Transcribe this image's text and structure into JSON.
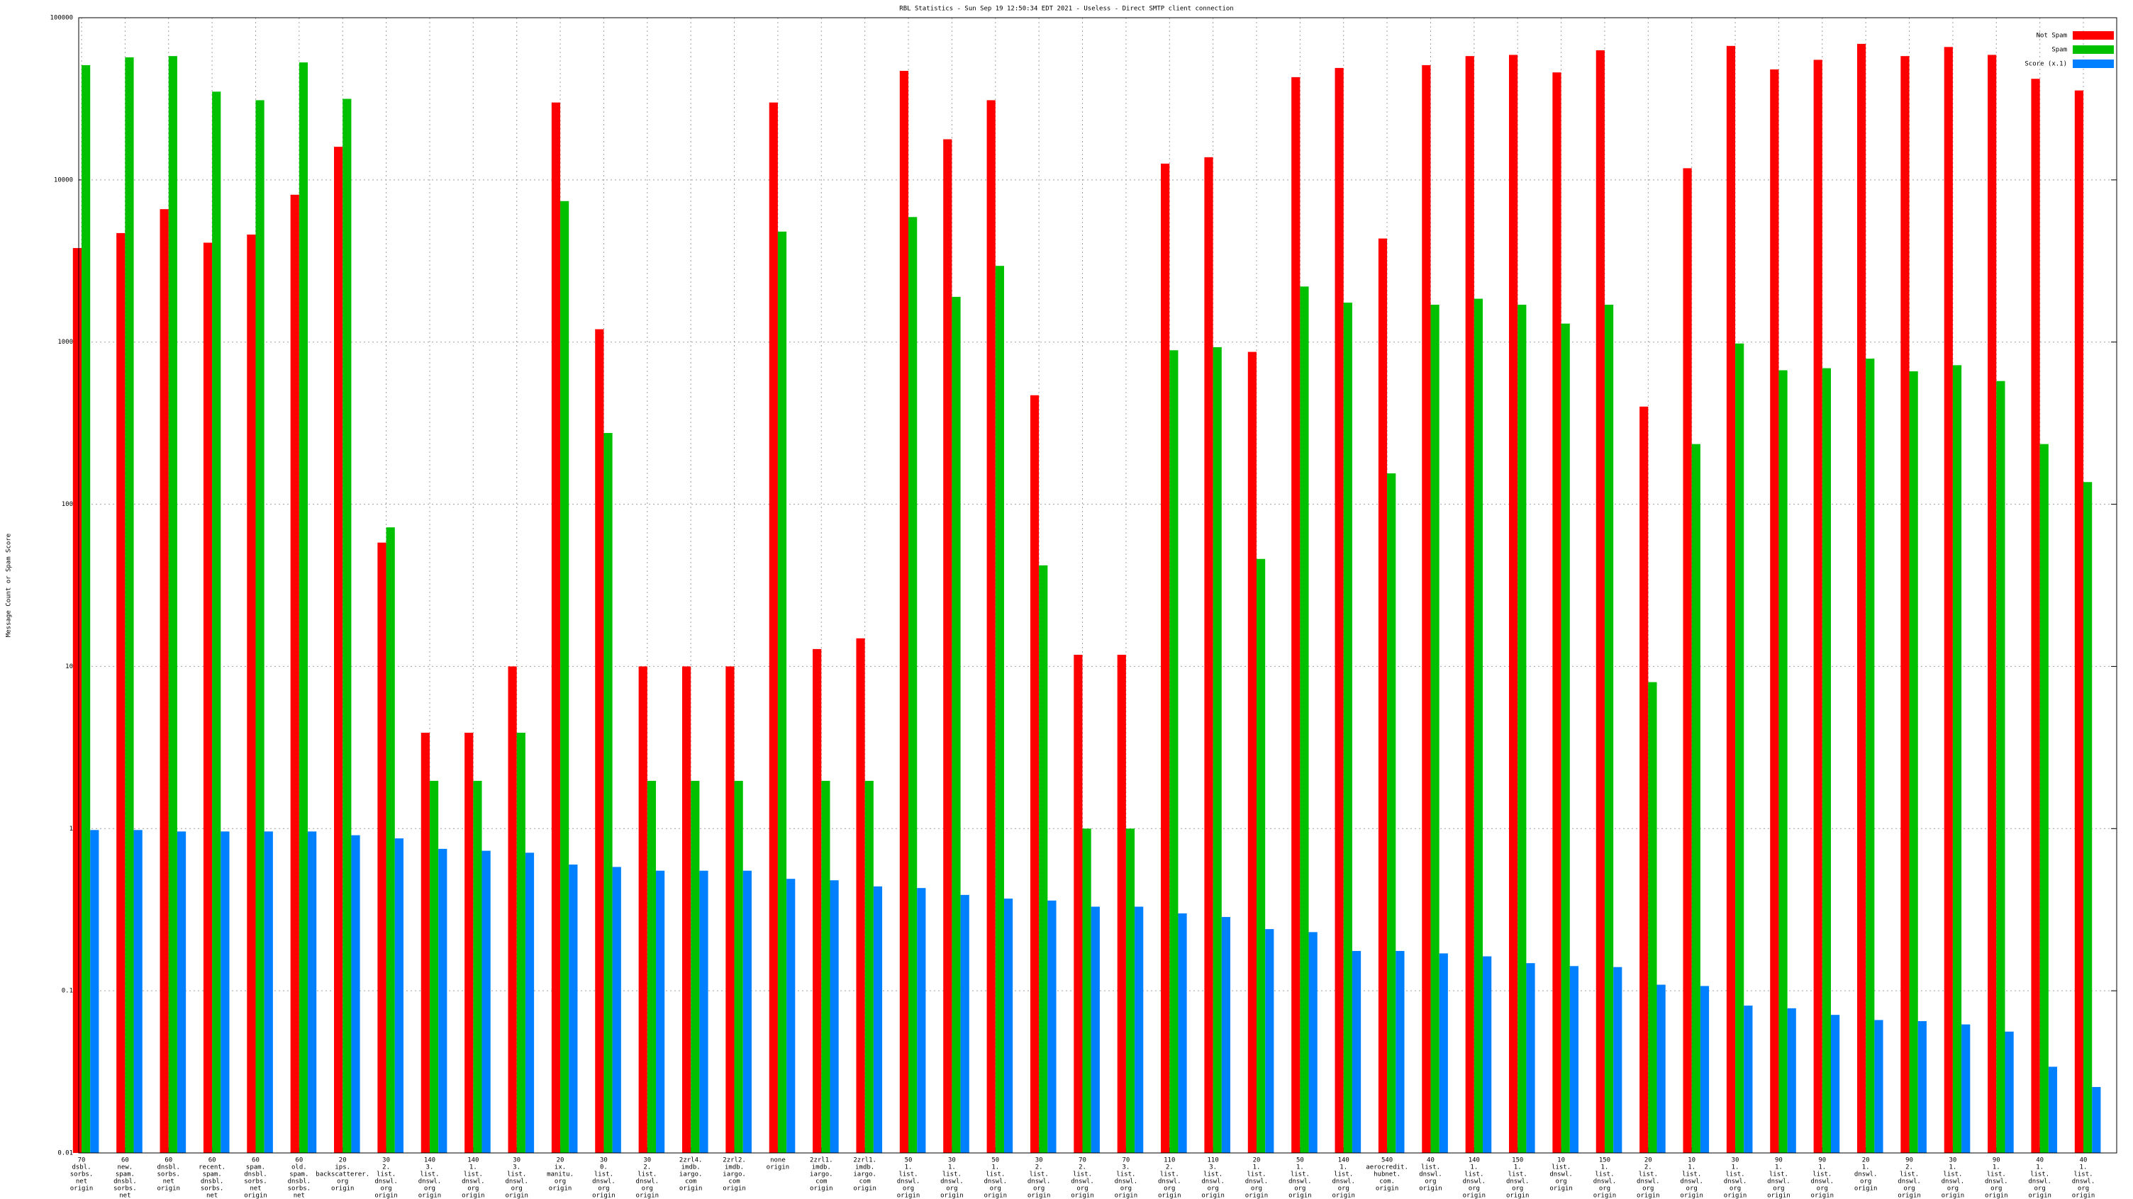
{
  "chart_data": {
    "type": "bar",
    "title": "RBL Statistics - Sun Sep 19 12:50:34 EDT 2021 - Useless - Direct SMTP client connection",
    "y_label": "Message Count or Spam Score",
    "log_y": true,
    "grid": true,
    "legend": "upper right",
    "ylim": [
      0.01,
      100000
    ],
    "yticks": [
      0.01,
      0.1,
      1,
      10,
      100,
      1000,
      10000,
      100000
    ],
    "categories": [
      [
        "70",
        "dsbl.",
        "sorbs.",
        "net",
        "origin"
      ],
      [
        "60",
        "new.",
        "spam.",
        "dnsbl.",
        "sorbs.",
        "net",
        "origin"
      ],
      [
        "60",
        "dnsbl.",
        "sorbs.",
        "net",
        "origin"
      ],
      [
        "60",
        "recent.",
        "spam.",
        "dnsbl.",
        "sorbs.",
        "net",
        "origin"
      ],
      [
        "60",
        "spam.",
        "dnsbl.",
        "sorbs.",
        "net",
        "origin"
      ],
      [
        "60",
        "old.",
        "spam.",
        "dnsbl.",
        "sorbs.",
        "net",
        "origin"
      ],
      [
        "20",
        "ips.",
        "backscatterer.",
        "org",
        "origin"
      ],
      [
        "30",
        "2.",
        "list.",
        "dnswl.",
        "org",
        "origin"
      ],
      [
        "140",
        "3.",
        "list.",
        "dnswl.",
        "org",
        "origin"
      ],
      [
        "140",
        "1.",
        "list.",
        "dnswl.",
        "org",
        "origin"
      ],
      [
        "30",
        "3.",
        "list.",
        "dnswl.",
        "org",
        "origin"
      ],
      [
        "20",
        "ix.",
        "manitu.",
        "org",
        "origin"
      ],
      [
        "30",
        "0.",
        "list.",
        "dnswl.",
        "org",
        "origin"
      ],
      [
        "30",
        "2.",
        "list.",
        "dnswl.",
        "org",
        "origin"
      ],
      [
        "2zrl4.",
        "imdb.",
        "iargo.",
        "com",
        "origin"
      ],
      [
        "2zrl2.",
        "imdb.",
        "iargo.",
        "com",
        "origin"
      ],
      [
        "none",
        "origin"
      ],
      [
        "2zrl1.",
        "imdb.",
        "iargo.",
        "com",
        "origin"
      ],
      [
        "2zrl1.",
        "imdb.",
        "iargo.",
        "com",
        "origin"
      ],
      [
        "50",
        "1.",
        "list.",
        "dnswl.",
        "org",
        "origin"
      ],
      [
        "30",
        "1.",
        "list.",
        "dnswl.",
        "org",
        "origin"
      ],
      [
        "50",
        "1.",
        "list.",
        "dnswl.",
        "org",
        "origin"
      ],
      [
        "30",
        "2.",
        "list.",
        "dnswl.",
        "org",
        "origin"
      ],
      [
        "70",
        "2.",
        "list.",
        "dnswl.",
        "org",
        "origin"
      ],
      [
        "70",
        "3.",
        "list.",
        "dnswl.",
        "org",
        "origin"
      ],
      [
        "110",
        "2.",
        "list.",
        "dnswl.",
        "org",
        "origin"
      ],
      [
        "110",
        "3.",
        "list.",
        "dnswl.",
        "org",
        "origin"
      ],
      [
        "20",
        "1.",
        "list.",
        "dnswl.",
        "org",
        "origin"
      ],
      [
        "50",
        "1.",
        "list.",
        "dnswl.",
        "org",
        "origin"
      ],
      [
        "140",
        "1.",
        "list.",
        "dnswl.",
        "org",
        "origin"
      ],
      [
        "540",
        "aerocredit.",
        "hubnet.",
        "com.",
        "origin"
      ],
      [
        "40",
        "list.",
        "dnswl.",
        "org",
        "origin"
      ],
      [
        "140",
        "1.",
        "list.",
        "dnswl.",
        "org",
        "origin"
      ],
      [
        "150",
        "1.",
        "list.",
        "dnswl.",
        "org",
        "origin"
      ],
      [
        "10",
        "list.",
        "dnswl.",
        "org",
        "origin"
      ],
      [
        "150",
        "1.",
        "list.",
        "dnswl.",
        "org",
        "origin"
      ],
      [
        "20",
        "2.",
        "list.",
        "dnswl.",
        "org",
        "origin"
      ],
      [
        "10",
        "1.",
        "list.",
        "dnswl.",
        "org",
        "origin"
      ],
      [
        "30",
        "1.",
        "list.",
        "dnswl.",
        "org",
        "origin"
      ],
      [
        "90",
        "1.",
        "list.",
        "dnswl.",
        "org",
        "origin"
      ],
      [
        "90",
        "1.",
        "list.",
        "dnswl.",
        "org",
        "origin"
      ],
      [
        "20",
        "1.",
        "dnswl.",
        "org",
        "origin"
      ],
      [
        "90",
        "2.",
        "list.",
        "dnswl.",
        "org",
        "origin"
      ],
      [
        "30",
        "1.",
        "list.",
        "dnswl.",
        "org",
        "origin"
      ],
      [
        "90",
        "1.",
        "list.",
        "dnswl.",
        "org",
        "origin"
      ],
      [
        "40",
        "1.",
        "list.",
        "dnswl.",
        "org",
        "origin"
      ],
      [
        "40",
        "1.",
        "list.",
        "dnswl.",
        "org",
        "origin"
      ]
    ],
    "series": [
      {
        "name": "Not Spam",
        "color": "#ff0000",
        "values": [
          3800,
          4700,
          6600,
          4100,
          4600,
          8100,
          16000,
          58,
          3.9,
          3.9,
          10,
          30000,
          1200,
          10,
          10,
          10,
          30000,
          12.8,
          14.9,
          47000,
          17800,
          31000,
          470,
          11.8,
          11.8,
          12600,
          13800,
          870,
          43000,
          49000,
          4350,
          51000,
          58000,
          59000,
          46000,
          63000,
          400,
          11800,
          67000,
          48000,
          55000,
          69000,
          58000,
          66000,
          59000,
          42000,
          35600
        ]
      },
      {
        "name": "Spam",
        "color": "#00c000",
        "values": [
          51000,
          57000,
          58000,
          35000,
          31000,
          53000,
          31600,
          72,
          1.97,
          1.97,
          3.9,
          7400,
          275,
          1.97,
          1.97,
          1.97,
          4800,
          1.97,
          1.97,
          5900,
          1900,
          2950,
          42,
          1,
          1,
          890,
          930,
          46,
          2200,
          1750,
          155,
          1700,
          1850,
          1700,
          1300,
          1700,
          8,
          235,
          980,
          670,
          690,
          790,
          660,
          720,
          575,
          235,
          137
        ]
      },
      {
        "name": "Score (x.1)",
        "color": "#0080ff",
        "values": [
          0.98,
          0.98,
          0.96,
          0.96,
          0.96,
          0.96,
          0.91,
          0.87,
          0.75,
          0.73,
          0.71,
          0.6,
          0.58,
          0.55,
          0.55,
          0.55,
          0.49,
          0.48,
          0.44,
          0.43,
          0.39,
          0.37,
          0.36,
          0.33,
          0.33,
          0.3,
          0.285,
          0.24,
          0.23,
          0.176,
          0.176,
          0.17,
          0.163,
          0.148,
          0.142,
          0.14,
          0.109,
          0.107,
          0.081,
          0.078,
          0.071,
          0.066,
          0.065,
          0.062,
          0.056,
          0.034,
          0.0255
        ]
      }
    ]
  }
}
